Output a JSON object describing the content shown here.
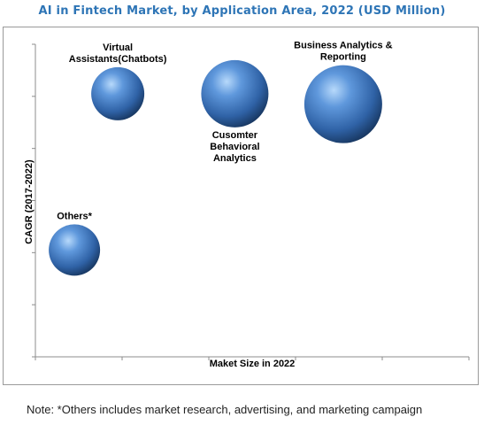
{
  "chart_data": {
    "type": "bubble",
    "title": "AI in Fintech Market, by Application  Area, 2022 (USD Million)",
    "xlabel": "Maket Size in 2022",
    "ylabel": "CAGR (2017-2022)",
    "points": [
      {
        "name": "Virtual Assistants(Chatbots)",
        "label_lines": [
          "Virtual",
          "Assistants(Chatbots)"
        ],
        "label_pos": "above",
        "x": 1.9,
        "y": 5.05,
        "size": 30
      },
      {
        "name": "Cusomter Behavioral Analytics",
        "label_lines": [
          "Cusomter",
          "Behavioral",
          "Analytics"
        ],
        "label_pos": "below",
        "x": 4.6,
        "y": 5.05,
        "size": 38
      },
      {
        "name": "Business Analytics & Reporting",
        "label_lines": [
          "Business Analytics &",
          "Reporting"
        ],
        "label_pos": "above",
        "x": 7.1,
        "y": 4.85,
        "size": 44
      },
      {
        "name": "Others*",
        "label_lines": [
          "Others*"
        ],
        "label_pos": "above",
        "x": 0.9,
        "y": 2.05,
        "size": 29
      }
    ],
    "xlim": [
      0,
      10
    ],
    "ylim": [
      0,
      6
    ],
    "grid": false,
    "legend": "none"
  },
  "note": "Note:  *Others  includes market research, advertising, and marketing campaign",
  "colors": {
    "title": "#2e75b6",
    "bubble_light": "#9ec7f5",
    "bubble_mid": "#3f77c0",
    "bubble_dark": "#17365f",
    "axis": "#8c8c8c"
  }
}
